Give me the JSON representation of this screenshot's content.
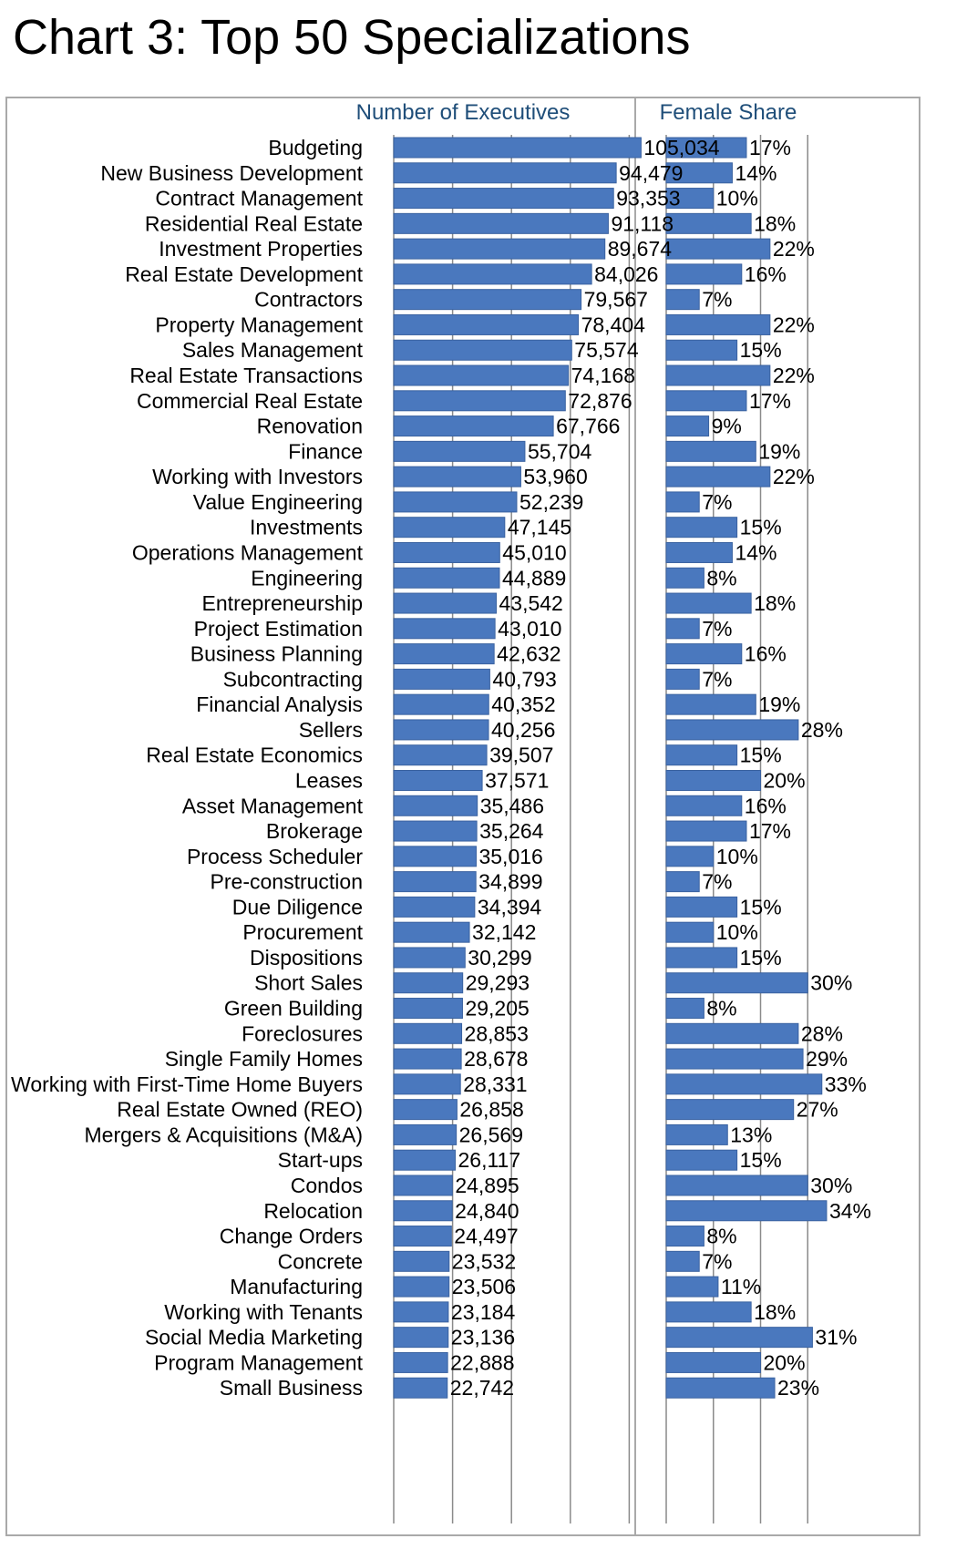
{
  "title": "Chart 3: Top 50 Specializations",
  "colors": {
    "bar": "#4a78be",
    "bar_edge": "#3a62a0",
    "grid": "#8a8a8a",
    "frame": "#a9a9a9",
    "panel_title": "#1f4e79"
  },
  "chart_data": [
    {
      "type": "bar",
      "orientation": "horizontal",
      "title": "Number of Executives",
      "xlim": [
        0,
        125000
      ],
      "grid": true,
      "categories": [
        "Budgeting",
        "New Business Development",
        "Contract Management",
        "Residential Real Estate",
        "Investment Properties",
        "Real Estate Development",
        "Contractors",
        "Property Management",
        "Sales Management",
        "Real Estate Transactions",
        "Commercial Real Estate",
        "Renovation",
        "Finance",
        "Working with Investors",
        "Value Engineering",
        "Investments",
        "Operations Management",
        "Engineering",
        "Entrepreneurship",
        "Project Estimation",
        "Business Planning",
        "Subcontracting",
        "Financial Analysis",
        "Sellers",
        "Real Estate Economics",
        "Leases",
        "Asset Management",
        "Brokerage",
        "Process Scheduler",
        "Pre-construction",
        "Due Diligence",
        "Procurement",
        "Dispositions",
        "Short Sales",
        "Green Building",
        "Foreclosures",
        "Single Family Homes",
        "Working with First-Time Home Buyers",
        "Real Estate Owned (REO)",
        "Mergers & Acquisitions (M&A)",
        "Start-ups",
        "Condos",
        "Relocation",
        "Change Orders",
        "Concrete",
        "Manufacturing",
        "Working with Tenants",
        "Social Media Marketing",
        "Program Management",
        "Small Business"
      ],
      "values": [
        105034,
        94479,
        93353,
        91118,
        89674,
        84026,
        79567,
        78404,
        75574,
        74168,
        72876,
        67766,
        55704,
        53960,
        52239,
        47145,
        45010,
        44889,
        43542,
        43010,
        42632,
        40793,
        40352,
        40256,
        39507,
        37571,
        35486,
        35264,
        35016,
        34899,
        34394,
        32142,
        30299,
        29293,
        29205,
        28853,
        28678,
        28331,
        26858,
        26569,
        26117,
        24895,
        24840,
        24497,
        23532,
        23506,
        23184,
        23136,
        22888,
        22742
      ],
      "labels": [
        "105,034",
        "94,479",
        "93,353",
        "91,118",
        "89,674",
        "84,026",
        "79,567",
        "78,404",
        "75,574",
        "74,168",
        "72,876",
        "67,766",
        "55,704",
        "53,960",
        "52,239",
        "47,145",
        "45,010",
        "44,889",
        "43,542",
        "43,010",
        "42,632",
        "40,793",
        "40,352",
        "40,256",
        "39,507",
        "37,571",
        "35,486",
        "35,264",
        "35,016",
        "34,899",
        "34,394",
        "32,142",
        "30,299",
        "29,293",
        "29,205",
        "28,853",
        "28,678",
        "28,331",
        "26,858",
        "26,569",
        "26,117",
        "24,895",
        "24,840",
        "24,497",
        "23,532",
        "23,506",
        "23,184",
        "23,136",
        "22,888",
        "22,742"
      ]
    },
    {
      "type": "bar",
      "orientation": "horizontal",
      "title": "Female Share",
      "xlim": [
        0,
        0.4
      ],
      "grid": true,
      "categories": [
        "Budgeting",
        "New Business Development",
        "Contract Management",
        "Residential Real Estate",
        "Investment Properties",
        "Real Estate Development",
        "Contractors",
        "Property Management",
        "Sales Management",
        "Real Estate Transactions",
        "Commercial Real Estate",
        "Renovation",
        "Finance",
        "Working with Investors",
        "Value Engineering",
        "Investments",
        "Operations Management",
        "Engineering",
        "Entrepreneurship",
        "Project Estimation",
        "Business Planning",
        "Subcontracting",
        "Financial Analysis",
        "Sellers",
        "Real Estate Economics",
        "Leases",
        "Asset Management",
        "Brokerage",
        "Process Scheduler",
        "Pre-construction",
        "Due Diligence",
        "Procurement",
        "Dispositions",
        "Short Sales",
        "Green Building",
        "Foreclosures",
        "Single Family Homes",
        "Working with First-Time Home Buyers",
        "Real Estate Owned (REO)",
        "Mergers & Acquisitions (M&A)",
        "Start-ups",
        "Condos",
        "Relocation",
        "Change Orders",
        "Concrete",
        "Manufacturing",
        "Working with Tenants",
        "Social Media Marketing",
        "Program Management",
        "Small Business"
      ],
      "values": [
        0.17,
        0.14,
        0.1,
        0.18,
        0.22,
        0.16,
        0.07,
        0.22,
        0.15,
        0.22,
        0.17,
        0.09,
        0.19,
        0.22,
        0.07,
        0.15,
        0.14,
        0.08,
        0.18,
        0.07,
        0.16,
        0.07,
        0.19,
        0.28,
        0.15,
        0.2,
        0.16,
        0.17,
        0.1,
        0.07,
        0.15,
        0.1,
        0.15,
        0.3,
        0.08,
        0.28,
        0.29,
        0.33,
        0.27,
        0.13,
        0.15,
        0.3,
        0.34,
        0.08,
        0.07,
        0.11,
        0.18,
        0.31,
        0.2,
        0.23
      ],
      "labels": [
        "17%",
        "14%",
        "10%",
        "18%",
        "22%",
        "16%",
        "7%",
        "22%",
        "15%",
        "22%",
        "17%",
        "9%",
        "19%",
        "22%",
        "7%",
        "15%",
        "14%",
        "8%",
        "18%",
        "7%",
        "16%",
        "7%",
        "19%",
        "28%",
        "15%",
        "20%",
        "16%",
        "17%",
        "10%",
        "7%",
        "15%",
        "10%",
        "15%",
        "30%",
        "8%",
        "28%",
        "29%",
        "33%",
        "27%",
        "13%",
        "15%",
        "30%",
        "34%",
        "8%",
        "7%",
        "11%",
        "18%",
        "31%",
        "20%",
        "23%"
      ]
    }
  ]
}
